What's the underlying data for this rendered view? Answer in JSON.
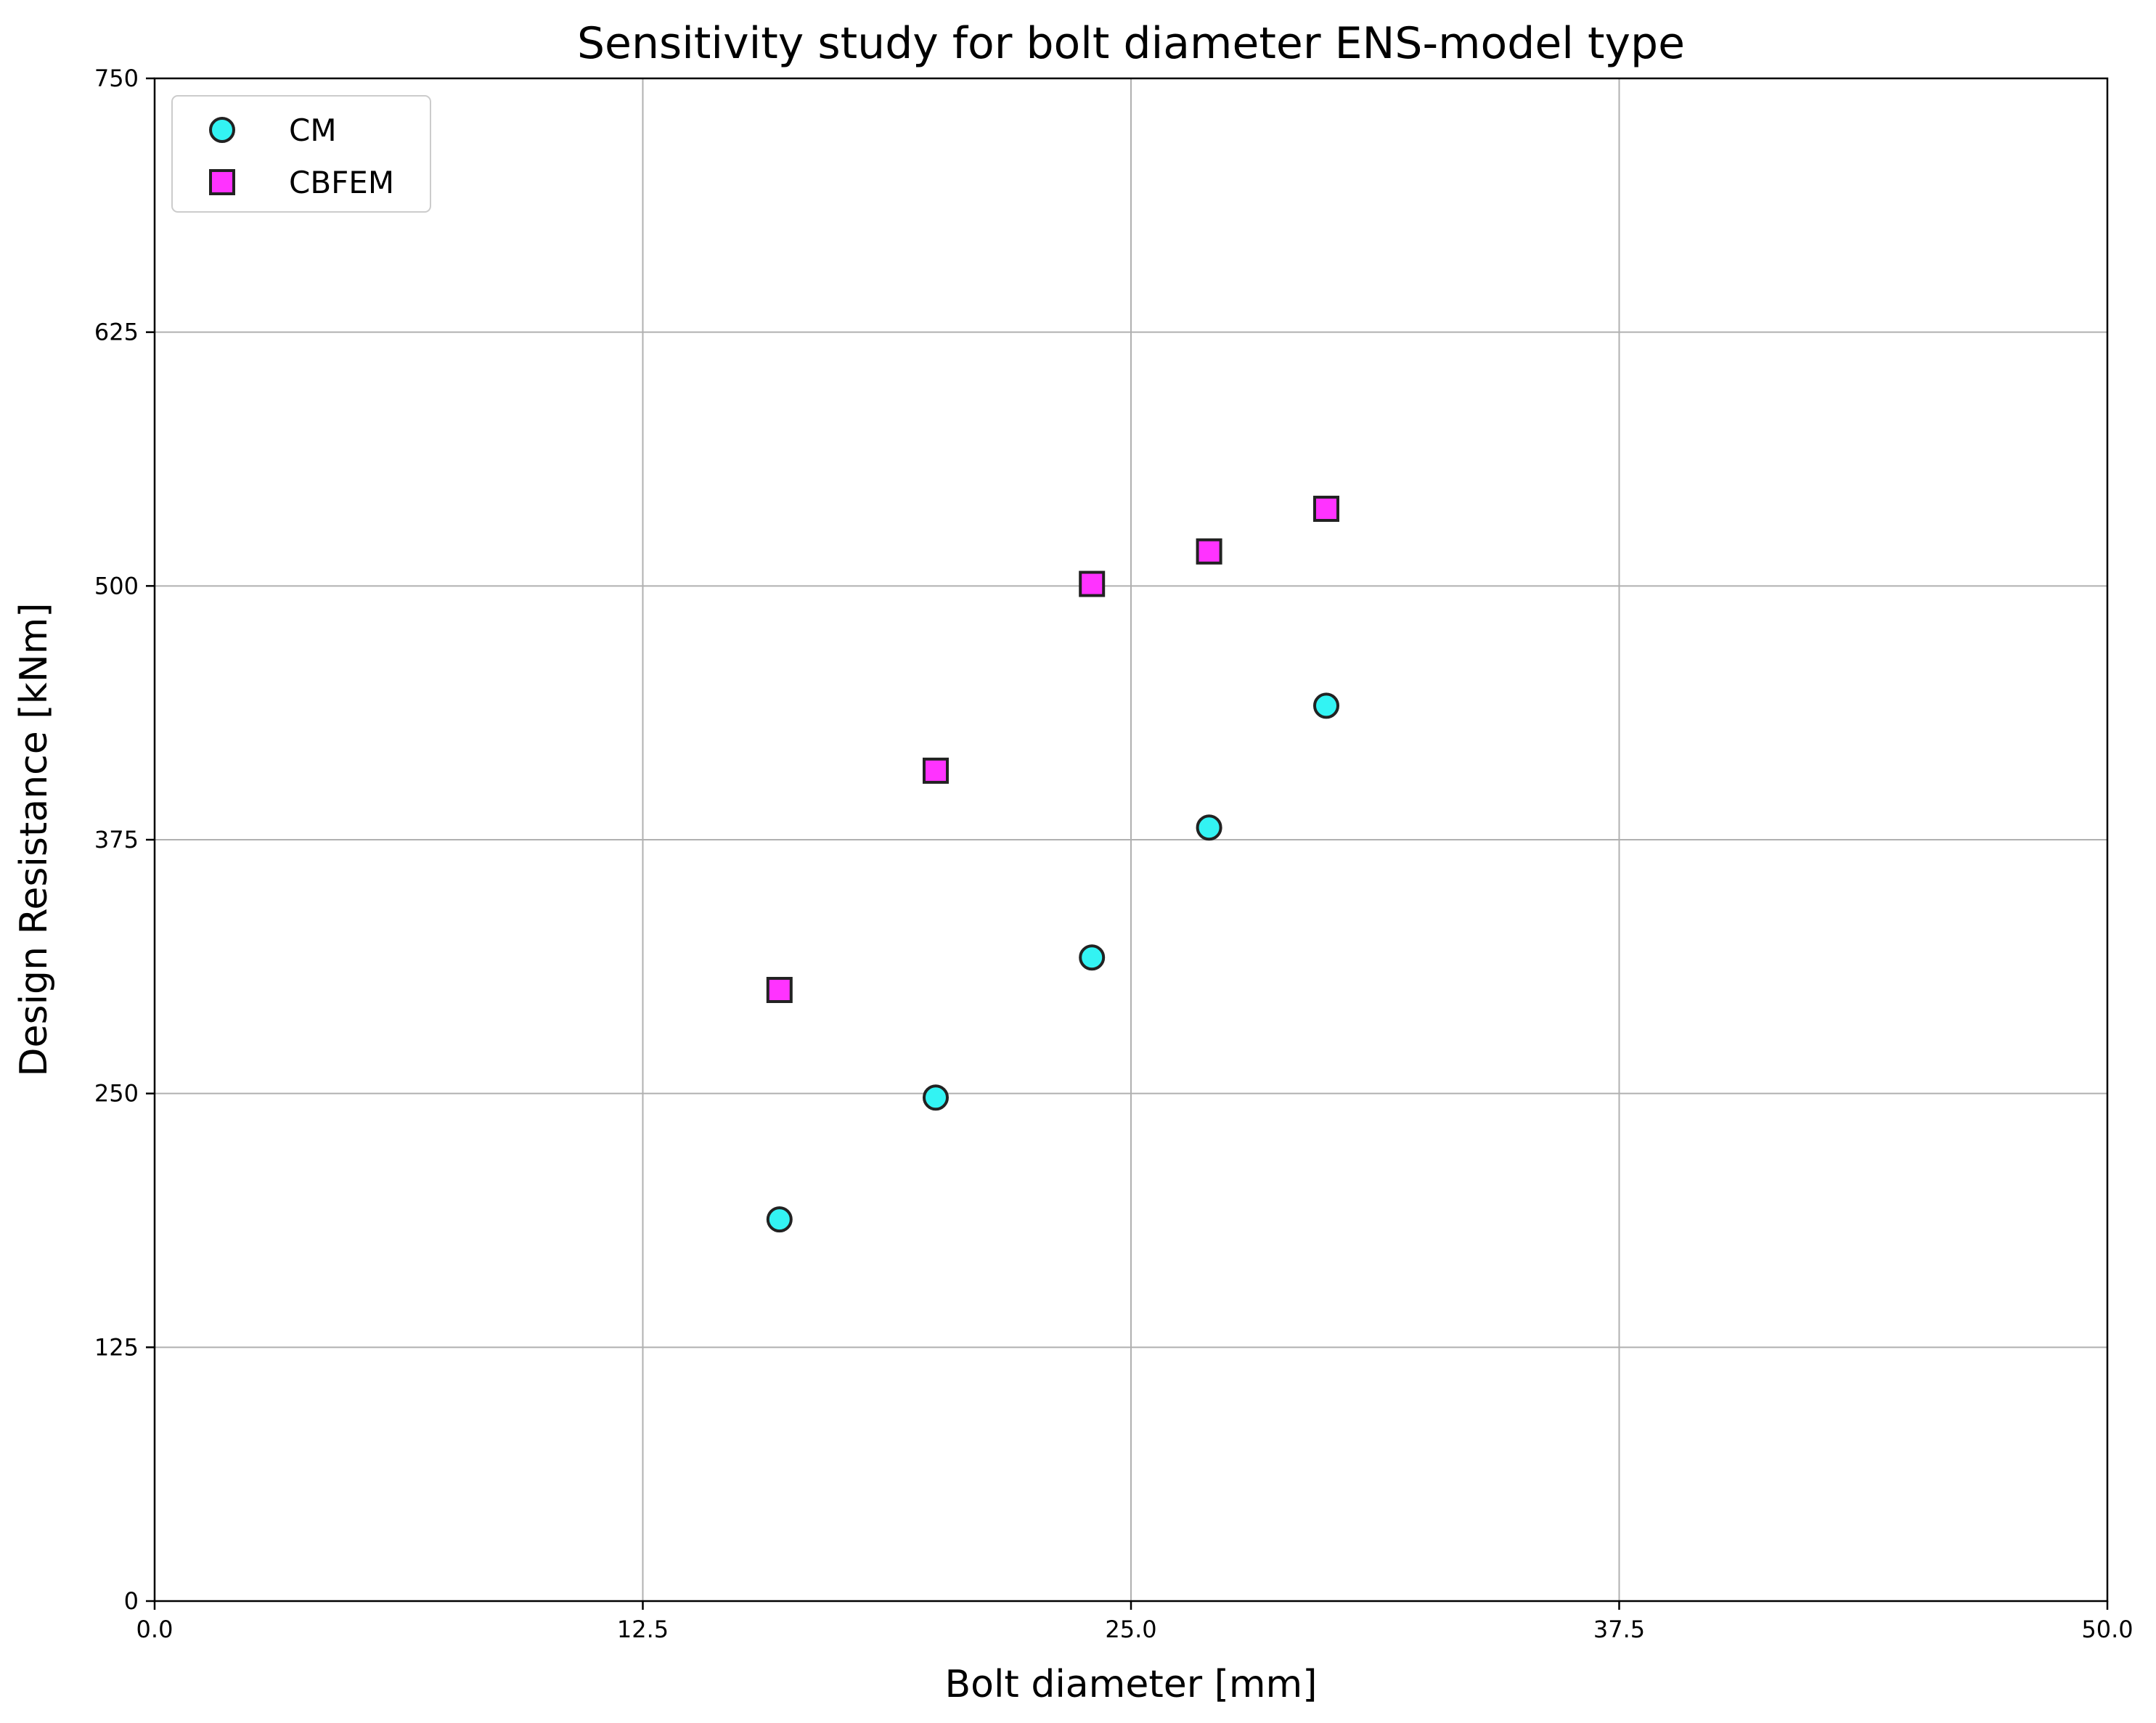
{
  "chart_data": {
    "type": "scatter",
    "title": "Sensitivity study for bolt diameter ENS-model type",
    "xlabel": "Bolt diameter [mm]",
    "ylabel": "Design Resistance [kNm]",
    "xlim": [
      0,
      50
    ],
    "ylim": [
      0,
      750
    ],
    "xticks": [
      0,
      12.5,
      25,
      37.5,
      50
    ],
    "xtick_labels": [
      "0.0",
      "12.5",
      "25.0",
      "37.5",
      "50.0"
    ],
    "yticks": [
      0,
      125,
      250,
      375,
      500,
      625,
      750
    ],
    "ytick_labels": [
      "0",
      "125",
      "250",
      "375",
      "500",
      "625",
      "750"
    ],
    "grid": true,
    "legend_position": "upper-left",
    "series": [
      {
        "name": "CM",
        "marker": "circle",
        "color": "#33f3f3",
        "edge_color": "#222222",
        "x": [
          16,
          20,
          24,
          27,
          30
        ],
        "y": [
          188,
          248,
          317,
          381,
          441
        ]
      },
      {
        "name": "CBFEM",
        "marker": "square",
        "color": "#ff33ff",
        "edge_color": "#222222",
        "x": [
          16,
          20,
          24,
          27,
          30
        ],
        "y": [
          301,
          409,
          501,
          517,
          538
        ]
      }
    ]
  }
}
